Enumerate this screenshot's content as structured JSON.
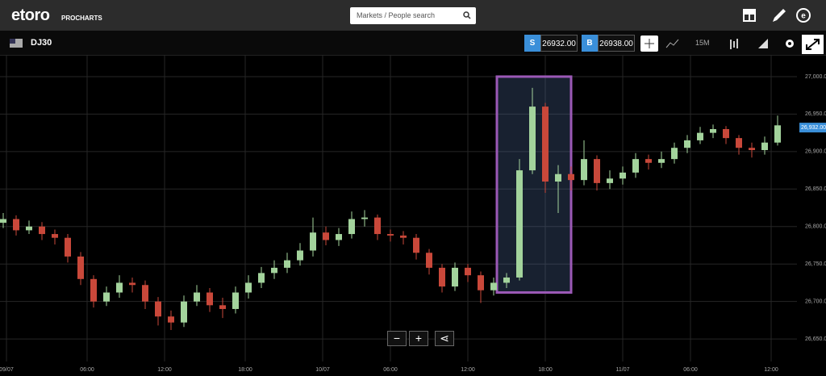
{
  "header": {
    "logo": "etoro",
    "logo_sub": "PROCHARTS",
    "search_placeholder": "Markets / People search"
  },
  "toolbar": {
    "instrument": "DJ30",
    "sell_label": "S",
    "sell_price": "26932.00",
    "buy_label": "B",
    "buy_price": "26938.00",
    "timeframe": "15M"
  },
  "chart_data": {
    "type": "candlestick",
    "up_color": "#a3d39c",
    "down_color": "#c9483a",
    "grid": true,
    "xlim": [
      0,
      247
    ],
    "ylim": [
      26620,
      27029
    ],
    "xticks": [
      {
        "value": 2,
        "label": "09/07"
      },
      {
        "value": 27,
        "label": "06:00"
      },
      {
        "value": 51,
        "label": "12:00"
      },
      {
        "value": 76,
        "label": "18:00"
      },
      {
        "value": 100,
        "label": "10/07"
      },
      {
        "value": 121,
        "label": "06:00"
      },
      {
        "value": 145,
        "label": "12:00"
      },
      {
        "value": 169,
        "label": "18:00"
      },
      {
        "value": 193,
        "label": "11/07"
      },
      {
        "value": 214,
        "label": "06:00"
      },
      {
        "value": 239,
        "label": "12:00"
      }
    ],
    "yticks": [
      {
        "value": 26650,
        "label": "26,650.00"
      },
      {
        "value": 26700,
        "label": "26,700.00"
      },
      {
        "value": 26750,
        "label": "26,750.00"
      },
      {
        "value": 26800,
        "label": "26,800.00"
      },
      {
        "value": 26850,
        "label": "26,850.00"
      },
      {
        "value": 26900,
        "label": "26,900.00"
      },
      {
        "value": 26950,
        "label": "26,950.00"
      },
      {
        "value": 27000,
        "label": "27,000.00"
      }
    ],
    "price_marker": {
      "value": 26932,
      "label": "26,932.00",
      "color": "#3a8fd9"
    },
    "highlight": {
      "x": [
        154,
        177
      ],
      "y": [
        26712,
        27000
      ],
      "color": "#9b59b6"
    },
    "x": [
      1,
      5,
      9,
      13,
      17,
      21,
      25,
      29,
      33,
      37,
      41,
      45,
      49,
      53,
      57,
      61,
      65,
      69,
      73,
      77,
      81,
      85,
      89,
      93,
      97,
      101,
      105,
      109,
      113,
      117,
      121,
      125,
      129,
      133,
      137,
      141,
      145,
      149,
      153,
      157,
      161,
      165,
      169,
      173,
      177,
      181,
      185,
      189,
      193,
      197,
      201,
      205,
      209,
      213,
      217,
      221,
      225,
      229,
      233,
      237,
      241
    ],
    "open": [
      26805,
      26810,
      26795,
      26800,
      26790,
      26785,
      26760,
      26730,
      26700,
      26712,
      26725,
      26722,
      26700,
      26680,
      26672,
      26700,
      26712,
      26695,
      26690,
      26712,
      26725,
      26738,
      26745,
      26755,
      26768,
      26792,
      26782,
      26790,
      26810,
      26812,
      26790,
      26788,
      26785,
      26765,
      26745,
      26720,
      26745,
      26735,
      26715,
      26725,
      26732,
      26875,
      26960,
      26860,
      26870,
      26862,
      26890,
      26858,
      26864,
      26872,
      26890,
      26885,
      26890,
      26905,
      26915,
      26925,
      26930,
      26918,
      26905,
      26902,
      26912
    ],
    "high": [
      26818,
      26815,
      26808,
      26806,
      26796,
      26790,
      26766,
      26735,
      26720,
      26735,
      26732,
      26728,
      26706,
      26688,
      26708,
      26722,
      26718,
      26705,
      26720,
      26735,
      26746,
      26755,
      26765,
      26778,
      26812,
      26800,
      26798,
      26820,
      26822,
      26816,
      26796,
      26794,
      26790,
      26770,
      26750,
      26752,
      26750,
      26740,
      26732,
      26738,
      26890,
      26985,
      26965,
      26882,
      26880,
      26915,
      26895,
      26875,
      26880,
      26898,
      26896,
      26900,
      26912,
      26922,
      26933,
      26936,
      26934,
      26922,
      26912,
      26920,
      26948
    ],
    "low": [
      26798,
      26788,
      26790,
      26782,
      26776,
      26752,
      26722,
      26692,
      26694,
      26705,
      26712,
      26690,
      26668,
      26662,
      26666,
      26694,
      26686,
      26678,
      26684,
      26704,
      26718,
      26730,
      26738,
      26748,
      26760,
      26775,
      26774,
      26784,
      26800,
      26782,
      26780,
      26776,
      26756,
      26736,
      26712,
      26714,
      26726,
      26698,
      26708,
      26718,
      26728,
      26870,
      26845,
      26818,
      26848,
      26855,
      26848,
      26850,
      26856,
      26865,
      26876,
      26878,
      26884,
      26898,
      26910,
      26918,
      26910,
      26896,
      26892,
      26896,
      26908
    ],
    "close": [
      26810,
      26795,
      26800,
      26790,
      26785,
      26760,
      26730,
      26700,
      26712,
      26725,
      26722,
      26700,
      26680,
      26672,
      26700,
      26712,
      26695,
      26690,
      26712,
      26725,
      26738,
      26745,
      26755,
      26768,
      26792,
      26782,
      26790,
      26810,
      26812,
      26790,
      26788,
      26785,
      26765,
      26745,
      26720,
      26745,
      26735,
      26715,
      26725,
      26732,
      26875,
      26960,
      26860,
      26870,
      26862,
      26890,
      26858,
      26864,
      26872,
      26890,
      26885,
      26890,
      26905,
      26915,
      26925,
      26930,
      26918,
      26905,
      26902,
      26912,
      26935
    ]
  }
}
